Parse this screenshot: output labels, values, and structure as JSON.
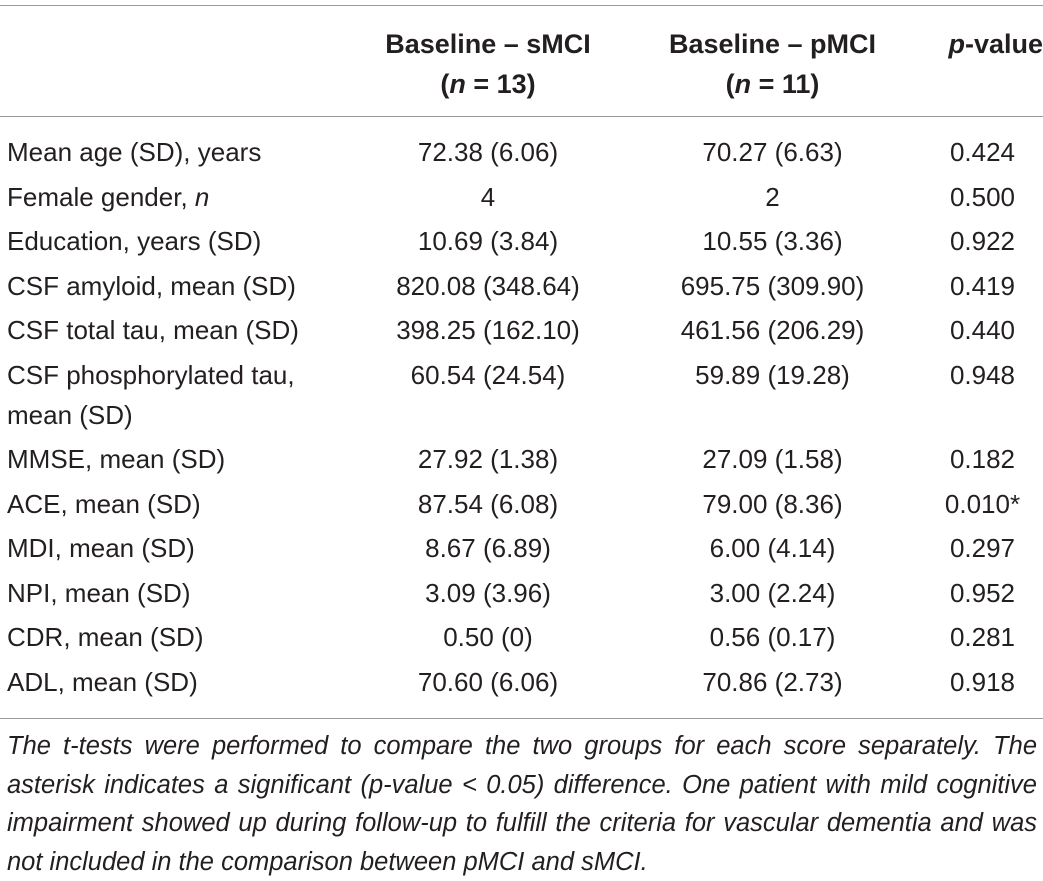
{
  "table": {
    "headers": {
      "col_smci_line1": "Baseline – sMCI",
      "col_smci_n_var": "n",
      "col_smci_n_rest": " = 13)",
      "col_pmci_line1": "Baseline – pMCI",
      "col_pmci_n_var": "n",
      "col_pmci_n_rest": " = 11)",
      "col_p_ital": "p",
      "col_p_rest": "-value"
    },
    "rows": [
      {
        "label": "Mean age (SD), years",
        "smci": "72.38 (6.06)",
        "pmci": "70.27 (6.63)",
        "p": "0.424"
      },
      {
        "label": "Female gender, ",
        "label_ital": "n",
        "smci": "4",
        "pmci": "2",
        "p": "0.500"
      },
      {
        "label": "Education, years (SD)",
        "smci": "10.69 (3.84)",
        "pmci": "10.55 (3.36)",
        "p": "0.922"
      },
      {
        "label": "CSF amyloid, mean (SD)",
        "smci": "820.08 (348.64)",
        "pmci": "695.75 (309.90)",
        "p": "0.419"
      },
      {
        "label": "CSF total tau, mean (SD)",
        "smci": "398.25 (162.10)",
        "pmci": "461.56 (206.29)",
        "p": "0.440"
      },
      {
        "label": "CSF phosphorylated tau, mean (SD)",
        "smci": "60.54 (24.54)",
        "pmci": "59.89 (19.28)",
        "p": "0.948"
      },
      {
        "label": "MMSE, mean (SD)",
        "smci": "27.92 (1.38)",
        "pmci": "27.09 (1.58)",
        "p": "0.182"
      },
      {
        "label": "ACE, mean (SD)",
        "smci": "87.54 (6.08)",
        "pmci": "79.00 (8.36)",
        "p": "0.010*"
      },
      {
        "label": "MDI, mean (SD)",
        "smci": "8.67 (6.89)",
        "pmci": "6.00 (4.14)",
        "p": "0.297"
      },
      {
        "label": "NPI, mean (SD)",
        "smci": "3.09 (3.96)",
        "pmci": "3.00 (2.24)",
        "p": "0.952"
      },
      {
        "label": "CDR, mean (SD)",
        "smci": "0.50 (0)",
        "pmci": "0.56 (0.17)",
        "p": "0.281"
      },
      {
        "label": "ADL, mean (SD)",
        "smci": "70.60 (6.06)",
        "pmci": "70.86 (2.73)",
        "p": "0.918"
      }
    ]
  },
  "footnote": "The t-tests were performed to compare the two groups for each score separately. The asterisk indicates a significant (p-value < 0.05) difference. One patient with mild cognitive impairment showed up during follow-up to fulfill the criteria for vascular dementia and was not included in the comparison between pMCI and sMCI."
}
